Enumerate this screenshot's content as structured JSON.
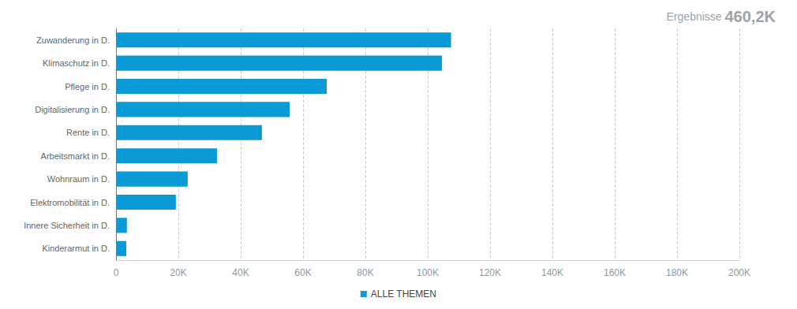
{
  "chart_data": {
    "type": "bar",
    "orientation": "horizontal",
    "annotations": [
      "Ergebnisse",
      "460,2K"
    ],
    "categories": [
      "Zuwanderung in D.",
      "Klimaschutz in D.",
      "Pflege in D.",
      "Digitalisierung in D.",
      "Rente in D.",
      "Arbeitsmarkt in D.",
      "Wohnraum in D.",
      "Elektromobilität in D.",
      "Innere Sicherheit in D.",
      "Kinderarmut in D."
    ],
    "series": [
      {
        "name": "ALLE THEMEN",
        "color": "#0a9bd6",
        "values": [
          107500,
          104600,
          67600,
          55700,
          46800,
          32400,
          23000,
          19200,
          3500,
          3300
        ]
      }
    ],
    "xlim": [
      0,
      200000
    ],
    "xticks": [
      0,
      {
        "value": 20000,
        "label": "20K"
      },
      {
        "value": 40000,
        "label": "40K"
      },
      {
        "value": 60000,
        "label": "60K"
      },
      {
        "value": 80000,
        "label": "80K"
      },
      {
        "value": 100000,
        "label": "100K"
      },
      {
        "value": 120000,
        "label": "120K"
      },
      {
        "value": 140000,
        "label": "140K"
      },
      {
        "value": 160000,
        "label": "160K"
      },
      {
        "value": 180000,
        "label": "180K"
      },
      {
        "value": 200000,
        "label": "200K"
      }
    ],
    "grid": true,
    "legend": "bottom"
  }
}
